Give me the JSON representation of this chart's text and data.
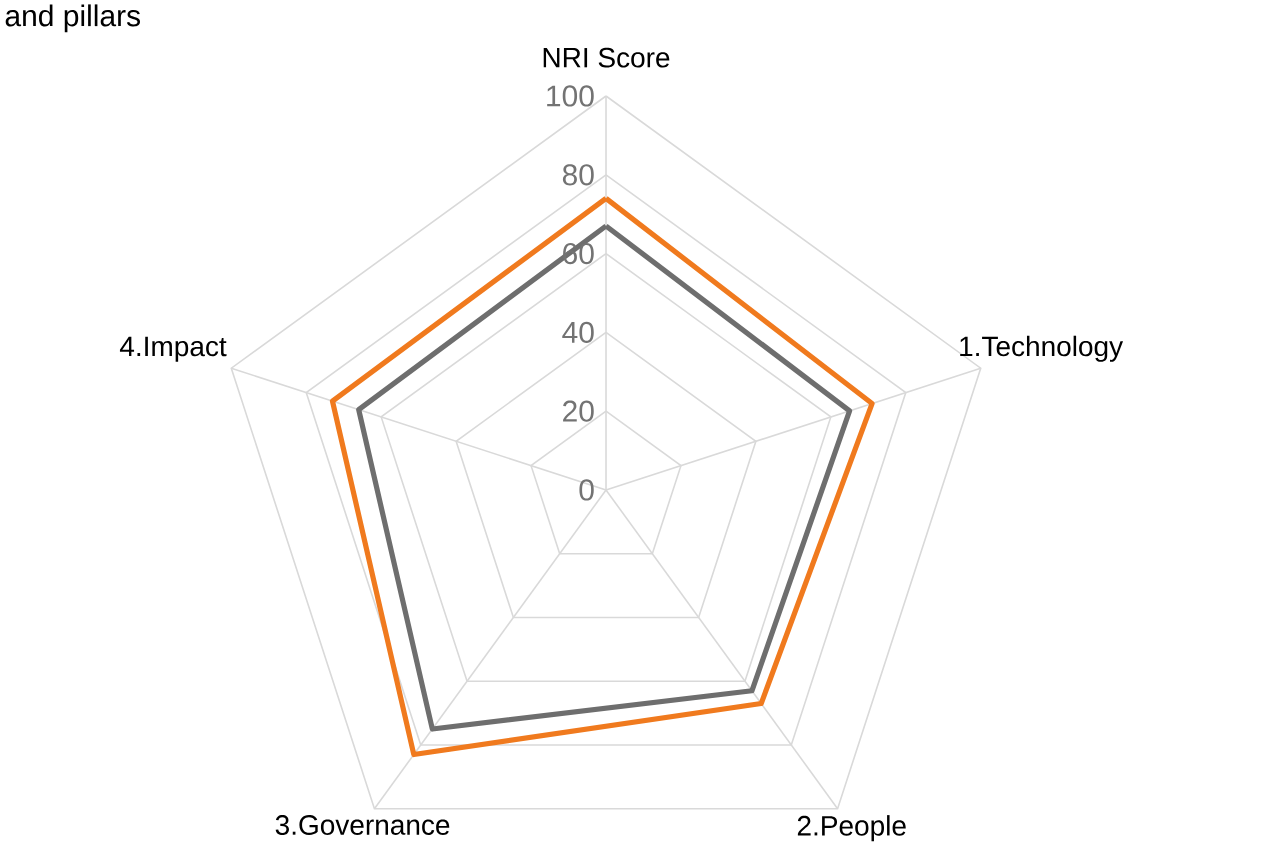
{
  "chart_data": {
    "type": "radar",
    "title": "and pillars",
    "categories": [
      "NRI Score",
      "1.Technology",
      "2.People",
      "3.Governance",
      "4.Impact"
    ],
    "series": [
      {
        "color": "#f07a1e",
        "values": [
          74,
          71,
          67,
          83,
          73
        ]
      },
      {
        "color": "#6e6e6e",
        "values": [
          67,
          65,
          63,
          75,
          66
        ]
      }
    ],
    "ylim": [
      0,
      100
    ],
    "yticks": [
      0,
      20,
      40,
      60,
      80,
      100
    ],
    "grid": true
  }
}
